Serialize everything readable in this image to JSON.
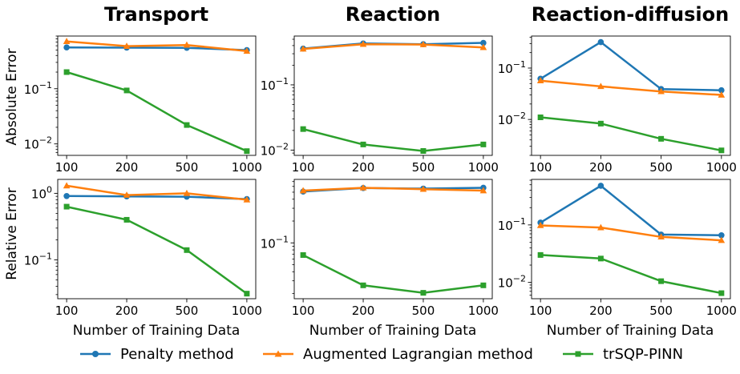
{
  "figure": {
    "column_titles": [
      "Transport",
      "Reaction",
      "Reaction-diffusion"
    ],
    "row_ylabels": [
      "Absolute Error",
      "Relative Error"
    ],
    "xlabel": "Number of Training Data"
  },
  "legend": {
    "placement": "bottom-center",
    "entries": [
      {
        "name": "Penalty method",
        "color": "#1f77b4",
        "marker": "circle"
      },
      {
        "name": "Augmented Lagrangian method",
        "color": "#ff7f0e",
        "marker": "triangle"
      },
      {
        "name": "trSQP-PINN",
        "color": "#2ca02c",
        "marker": "square"
      }
    ]
  },
  "chart_data": [
    {
      "type": "line",
      "title": "Transport",
      "xlabel": "",
      "ylabel": "Absolute Error",
      "categories": [
        "100",
        "200",
        "500",
        "1000"
      ],
      "yscale": "log",
      "ylim": [
        0.0062,
        0.9
      ],
      "ytick_labels": [
        {
          "v": 0.01,
          "t": "10^-2"
        },
        {
          "v": 0.1,
          "t": "10^-1"
        }
      ],
      "series": [
        {
          "name": "Penalty method",
          "values": [
            0.56,
            0.555,
            0.55,
            0.5
          ]
        },
        {
          "name": "Augmented Lagrangian method",
          "values": [
            0.72,
            0.59,
            0.62,
            0.48
          ]
        },
        {
          "name": "trSQP-PINN",
          "values": [
            0.2,
            0.093,
            0.022,
            0.0074
          ]
        }
      ]
    },
    {
      "type": "line",
      "title": "Reaction",
      "xlabel": "",
      "ylabel": "",
      "categories": [
        "100",
        "200",
        "500",
        "1000"
      ],
      "yscale": "log",
      "ylim": [
        0.0083,
        0.56
      ],
      "ytick_labels": [
        {
          "v": 0.01,
          "t": "10^-2"
        },
        {
          "v": 0.1,
          "t": "10^-1"
        }
      ],
      "series": [
        {
          "name": "Penalty method",
          "values": [
            0.36,
            0.43,
            0.42,
            0.44
          ]
        },
        {
          "name": "Augmented Lagrangian method",
          "values": [
            0.355,
            0.42,
            0.415,
            0.375
          ]
        },
        {
          "name": "trSQP-PINN",
          "values": [
            0.021,
            0.0122,
            0.0097,
            0.0122
          ]
        }
      ]
    },
    {
      "type": "line",
      "title": "Reaction-diffusion",
      "xlabel": "",
      "ylabel": "",
      "categories": [
        "100",
        "200",
        "500",
        "1000"
      ],
      "yscale": "log",
      "ylim": [
        0.002,
        0.42
      ],
      "ytick_labels": [
        {
          "v": 0.01,
          "t": "10^-2"
        },
        {
          "v": 0.1,
          "t": "10^-1"
        }
      ],
      "series": [
        {
          "name": "Penalty method",
          "values": [
            0.062,
            0.32,
            0.039,
            0.037
          ]
        },
        {
          "name": "Augmented Lagrangian method",
          "values": [
            0.057,
            0.044,
            0.035,
            0.03
          ]
        },
        {
          "name": "trSQP-PINN",
          "values": [
            0.011,
            0.0083,
            0.0042,
            0.0025
          ]
        }
      ]
    },
    {
      "type": "line",
      "title": "",
      "xlabel": "Number of Training Data",
      "ylabel": "Relative Error",
      "categories": [
        "100",
        "200",
        "500",
        "1000"
      ],
      "yscale": "log",
      "ylim": [
        0.026,
        1.62
      ],
      "ytick_labels": [
        {
          "v": 0.1,
          "t": "10^-1"
        },
        {
          "v": 1,
          "t": "10^0"
        }
      ],
      "series": [
        {
          "name": "Penalty method",
          "values": [
            0.91,
            0.9,
            0.89,
            0.82
          ]
        },
        {
          "name": "Augmented Lagrangian method",
          "values": [
            1.3,
            0.94,
            1.0,
            0.8
          ]
        },
        {
          "name": "trSQP-PINN",
          "values": [
            0.63,
            0.4,
            0.14,
            0.031
          ]
        }
      ]
    },
    {
      "type": "line",
      "title": "",
      "xlabel": "Number of Training Data",
      "ylabel": "",
      "categories": [
        "100",
        "200",
        "500",
        "1000"
      ],
      "yscale": "log",
      "ylim": [
        0.017,
        0.75
      ],
      "ytick_labels": [
        {
          "v": 0.1,
          "t": "10^-1"
        }
      ],
      "series": [
        {
          "name": "Penalty method",
          "values": [
            0.51,
            0.57,
            0.56,
            0.575
          ]
        },
        {
          "name": "Augmented Lagrangian method",
          "values": [
            0.525,
            0.575,
            0.55,
            0.525
          ]
        },
        {
          "name": "trSQP-PINN",
          "values": [
            0.068,
            0.026,
            0.0205,
            0.026
          ]
        }
      ]
    },
    {
      "type": "line",
      "title": "",
      "xlabel": "Number of Training Data",
      "ylabel": "",
      "categories": [
        "100",
        "200",
        "500",
        "1000"
      ],
      "yscale": "log",
      "ylim": [
        0.0052,
        0.62
      ],
      "ytick_labels": [
        {
          "v": 0.01,
          "t": "10^-2"
        },
        {
          "v": 0.1,
          "t": "10^-1"
        }
      ],
      "series": [
        {
          "name": "Penalty method",
          "values": [
            0.11,
            0.48,
            0.068,
            0.066
          ]
        },
        {
          "name": "Augmented Lagrangian method",
          "values": [
            0.098,
            0.09,
            0.062,
            0.054
          ]
        },
        {
          "name": "trSQP-PINN",
          "values": [
            0.03,
            0.026,
            0.0105,
            0.0065
          ]
        }
      ]
    }
  ]
}
